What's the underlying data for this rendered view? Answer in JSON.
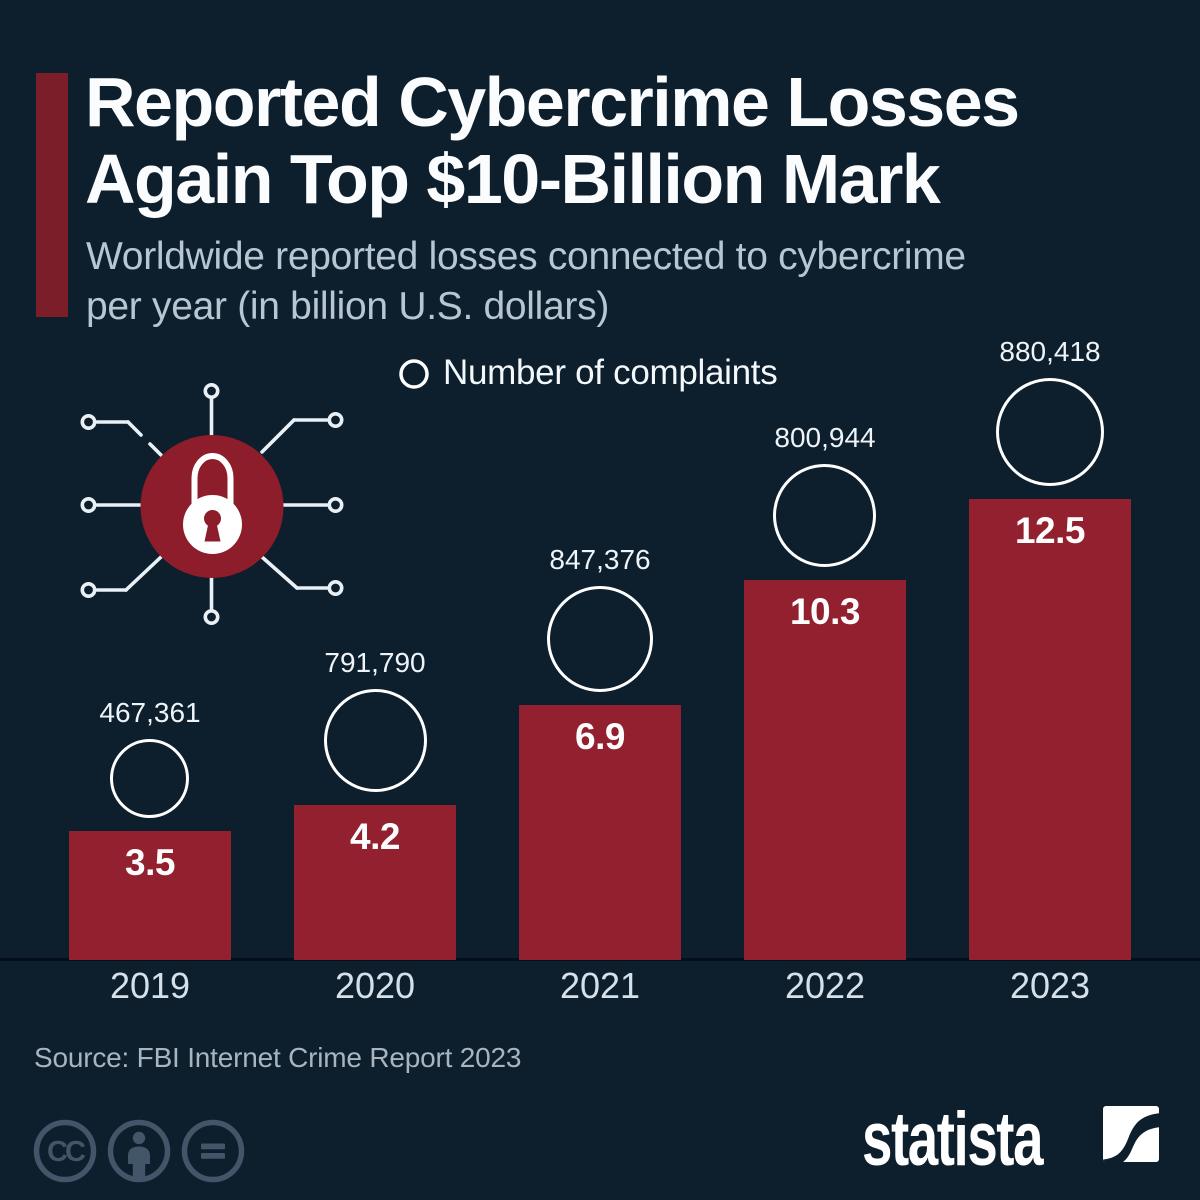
{
  "header": {
    "title_lines": [
      "Reported Cybercrime Losses",
      "Again Top $10-Billion Mark"
    ],
    "subtitle_lines": [
      "Worldwide reported losses connected to cybercrime",
      "per year (in billion U.S. dollars)"
    ]
  },
  "chart_data": {
    "type": "bar",
    "title": "Reported Cybercrime Losses Again Top $10-Billion Mark",
    "subtitle": "Worldwide reported losses connected to cybercrime per year (in billion U.S. dollars)",
    "categories": [
      "2019",
      "2020",
      "2021",
      "2022",
      "2023"
    ],
    "series": [
      {
        "name": "Reported losses (billion U.S. dollars)",
        "values": [
          3.5,
          4.2,
          6.9,
          10.3,
          12.5
        ]
      },
      {
        "name": "Number of complaints",
        "values": [
          467361,
          791790,
          847376,
          800944,
          880418
        ]
      }
    ],
    "value_labels": [
      "3.5",
      "4.2",
      "6.9",
      "10.3",
      "12.5"
    ],
    "complaints_formatted": [
      "467,361",
      "791,790",
      "847,376",
      "800,944",
      "880,418"
    ],
    "legend_label": "Number of complaints",
    "ylim": [
      0,
      13.5
    ],
    "grid": false,
    "legend_position": "top-center",
    "bar_color": "#93202e",
    "circle_color": "#ffffff",
    "background_color": "#0d1e2c",
    "accent_color": "#7c1e2a"
  },
  "illustration": {
    "name": "padlock-network",
    "circle_color": "#8d1d2b",
    "line_color": "#e9f0f6"
  },
  "footer": {
    "source": "Source: FBI Internet Crime Report 2023",
    "cc_icons": [
      "cc",
      "attribution",
      "no-derivatives"
    ],
    "brand": "statista"
  }
}
